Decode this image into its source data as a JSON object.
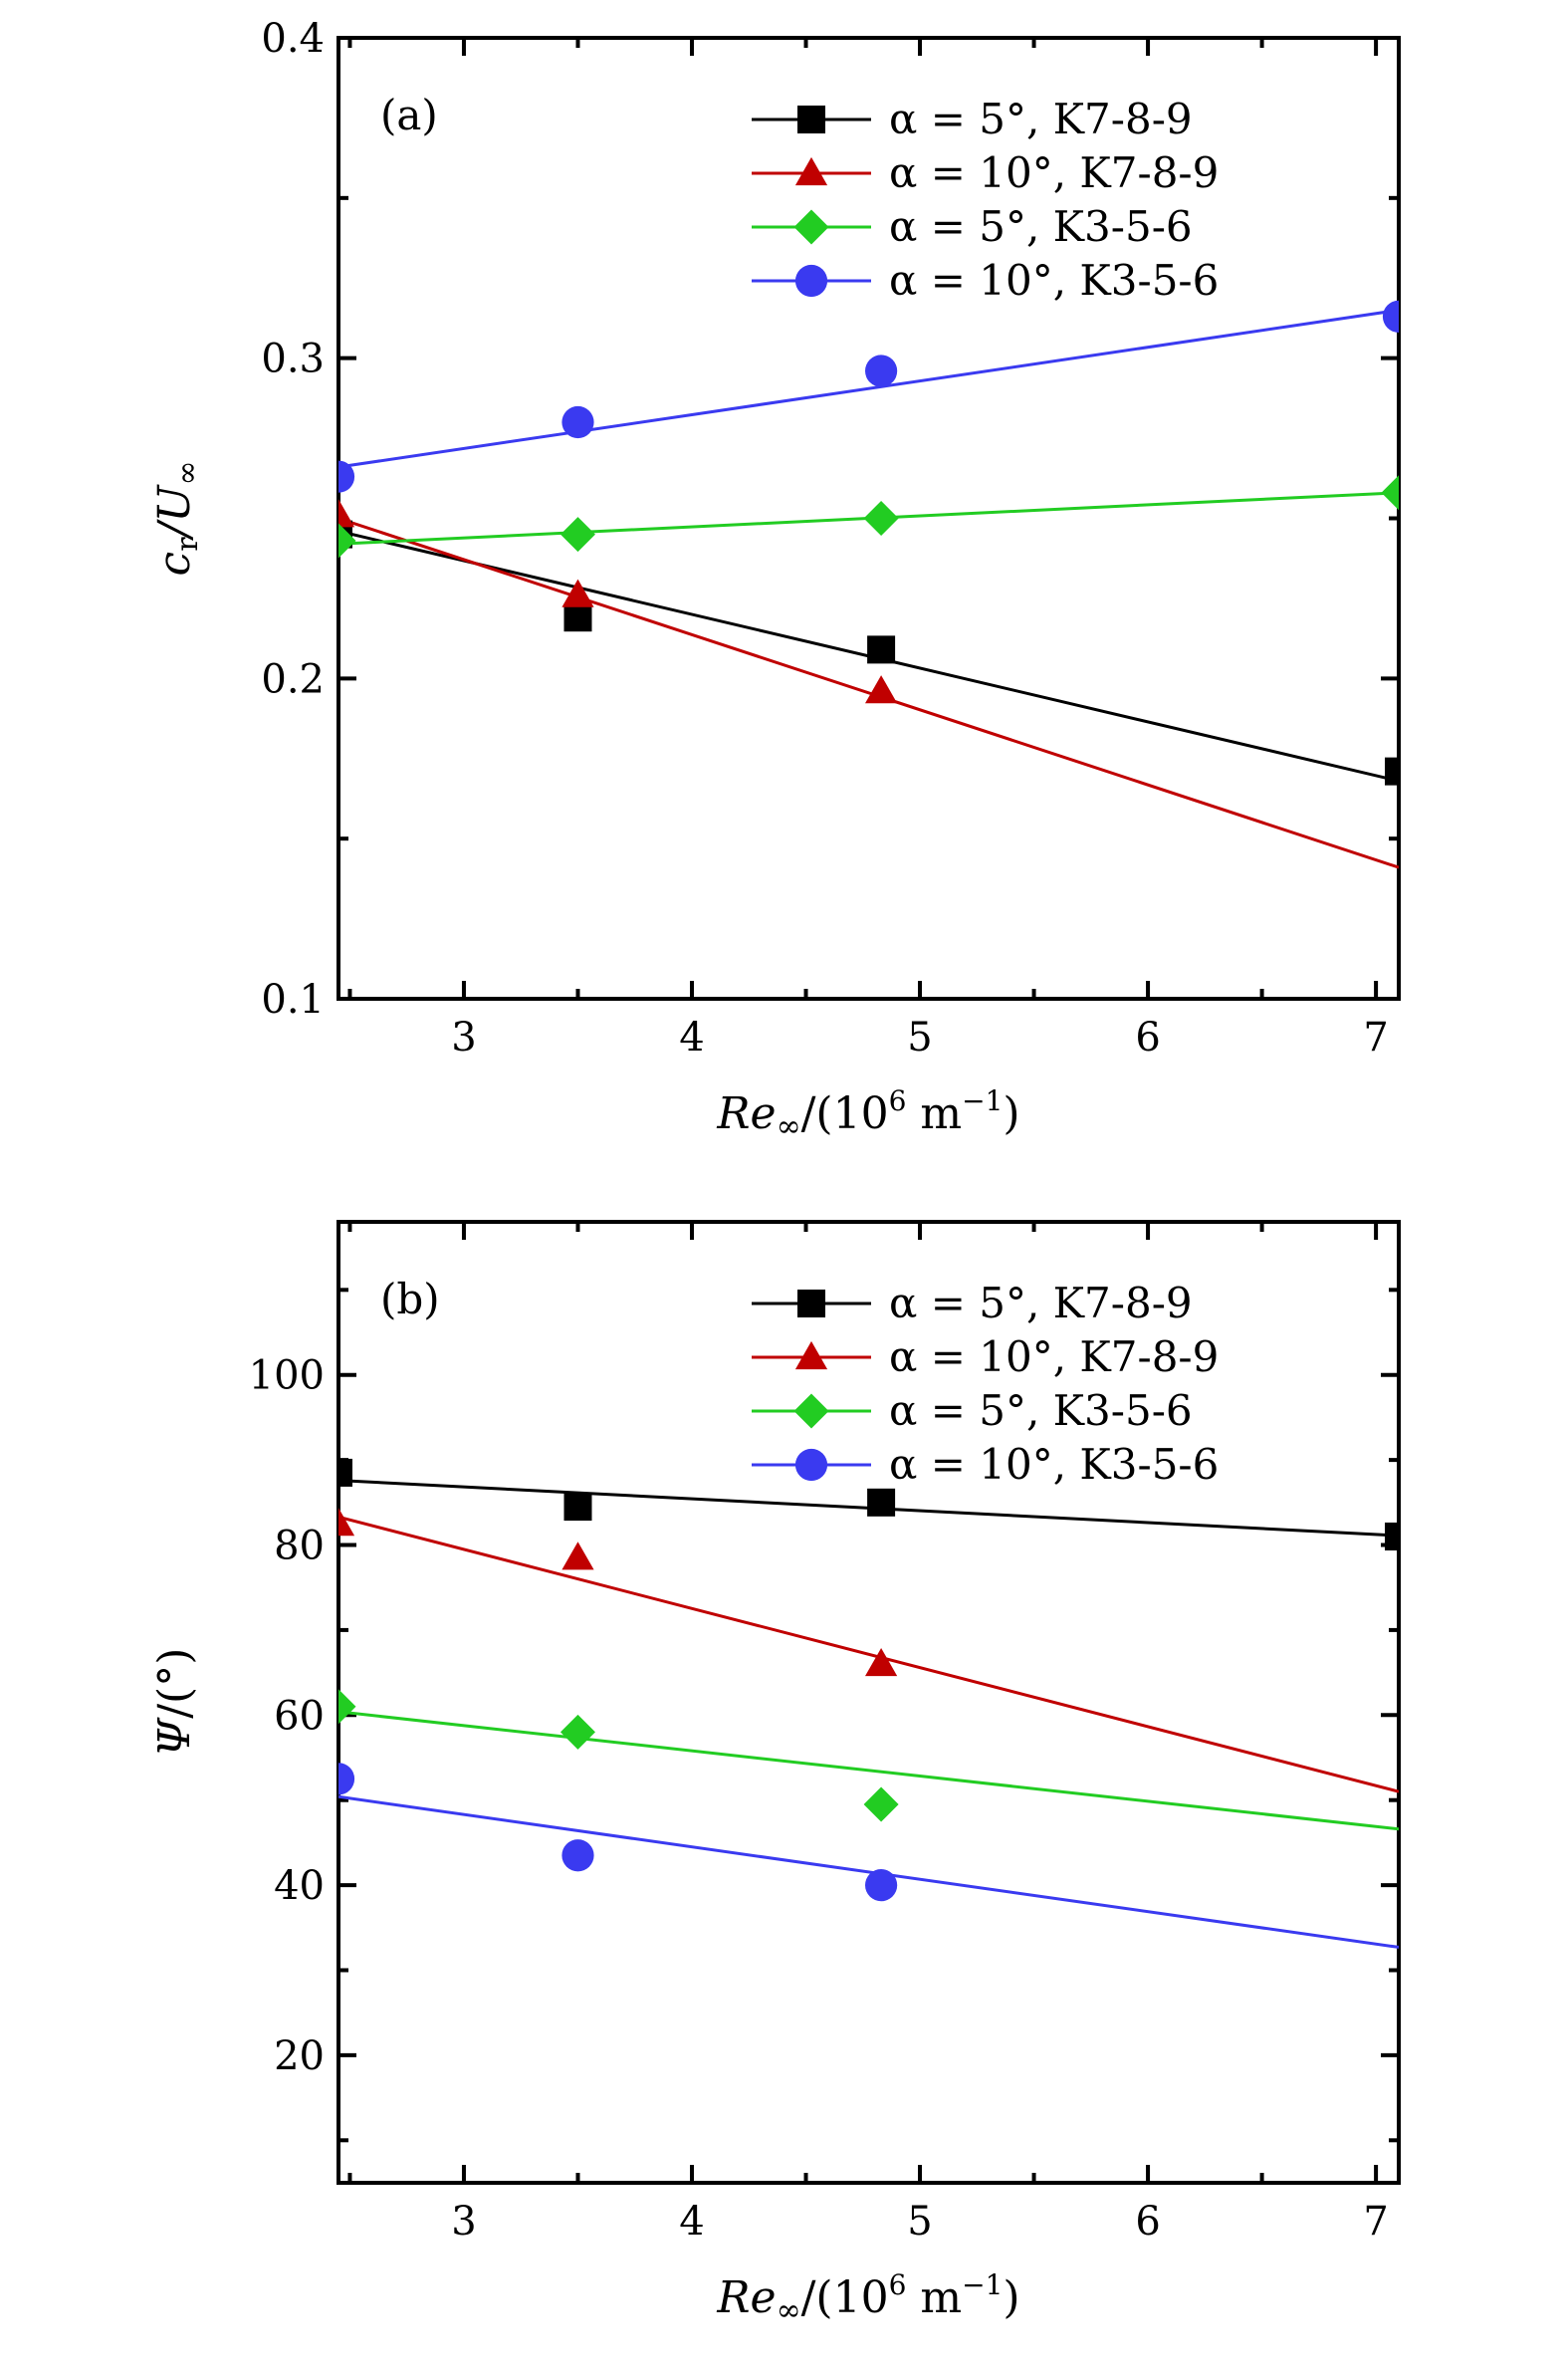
{
  "colors": {
    "black": "#000000",
    "red": "#c00000",
    "green": "#22cc22",
    "blue": "#3a3af0"
  },
  "chart_data": [
    {
      "type": "scatter",
      "panel_label": "(a)",
      "xlabel_parts": [
        "Re",
        "∞",
        "/(10",
        "6",
        " m",
        "−1",
        ")"
      ],
      "ylabel_parts": [
        "c",
        "r",
        "/U",
        "∞"
      ],
      "xlim": [
        2.45,
        7.1
      ],
      "ylim": [
        0.1,
        0.4
      ],
      "x_ticks": [
        3,
        4,
        5,
        6,
        7
      ],
      "x_tick_labels": [
        "3",
        "4",
        "5",
        "6",
        "7"
      ],
      "y_ticks": [
        0.1,
        0.2,
        0.3,
        0.4
      ],
      "y_tick_labels": [
        "0.1",
        "0.2",
        "0.3",
        "0.4"
      ],
      "legend_position": "top-right",
      "series": [
        {
          "name": "α = 5°, K7-8-9",
          "color": "#000000",
          "marker": "square",
          "x": [
            2.45,
            3.5,
            4.83,
            7.1
          ],
          "y": [
            0.245,
            0.219,
            0.209,
            0.171
          ],
          "fit": [
            [
              2.45,
              0.246
            ],
            [
              7.1,
              0.168
            ]
          ]
        },
        {
          "name": "α = 10°, K7-8-9",
          "color": "#c00000",
          "marker": "triangle",
          "x": [
            2.45,
            3.5,
            4.83
          ],
          "y": [
            0.251,
            0.226,
            0.196
          ],
          "fit": [
            [
              2.45,
              0.25
            ],
            [
              7.1,
              0.141
            ]
          ]
        },
        {
          "name": "α = 5°, K3-5-6",
          "color": "#22cc22",
          "marker": "diamond",
          "x": [
            2.45,
            3.5,
            4.83,
            7.1
          ],
          "y": [
            0.243,
            0.245,
            0.25,
            0.258
          ],
          "fit": [
            [
              2.45,
              0.242
            ],
            [
              7.1,
              0.258
            ]
          ]
        },
        {
          "name": "α = 10°, K3-5-6",
          "color": "#3a3af0",
          "marker": "circle",
          "x": [
            2.45,
            3.5,
            4.83,
            7.1
          ],
          "y": [
            0.263,
            0.28,
            0.296,
            0.313
          ],
          "fit": [
            [
              2.45,
              0.266
            ],
            [
              7.1,
              0.315
            ]
          ]
        }
      ]
    },
    {
      "type": "scatter",
      "panel_label": "(b)",
      "xlabel_parts": [
        "Re",
        "∞",
        "/(10",
        "6",
        " m",
        "−1",
        ")"
      ],
      "ylabel_parts": [
        "Ψ",
        "",
        "/(°)",
        ""
      ],
      "xlim": [
        2.45,
        7.1
      ],
      "ylim": [
        5,
        118
      ],
      "x_ticks": [
        3,
        4,
        5,
        6,
        7
      ],
      "x_tick_labels": [
        "3",
        "4",
        "5",
        "6",
        "7"
      ],
      "y_ticks": [
        20,
        40,
        60,
        80,
        100
      ],
      "y_tick_labels": [
        "20",
        "40",
        "60",
        "80",
        "100"
      ],
      "legend_position": "top-right",
      "series": [
        {
          "name": "α = 5°, K7-8-9",
          "color": "#000000",
          "marker": "square",
          "x": [
            2.45,
            3.5,
            4.83,
            7.1
          ],
          "y": [
            88.5,
            84.5,
            85,
            81
          ],
          "fit": [
            [
              2.45,
              87.6
            ],
            [
              7.1,
              81.1
            ]
          ]
        },
        {
          "name": "α = 10°, K7-8-9",
          "color": "#c00000",
          "marker": "triangle",
          "x": [
            2.45,
            3.5,
            4.83
          ],
          "y": [
            82.5,
            78.5,
            66
          ],
          "fit": [
            [
              2.45,
              83.3
            ],
            [
              7.1,
              51
            ]
          ]
        },
        {
          "name": "α = 5°, K3-5-6",
          "color": "#22cc22",
          "marker": "diamond",
          "x": [
            2.45,
            3.5,
            4.83
          ],
          "y": [
            61,
            58,
            49.5
          ],
          "fit": [
            [
              2.45,
              60.4
            ],
            [
              7.1,
              46.6
            ]
          ]
        },
        {
          "name": "α = 10°, K3-5-6",
          "color": "#3a3af0",
          "marker": "circle",
          "x": [
            2.45,
            3.5,
            4.83
          ],
          "y": [
            52.5,
            43.5,
            40
          ],
          "fit": [
            [
              2.45,
              50.4
            ],
            [
              7.1,
              32.7
            ]
          ]
        }
      ]
    }
  ]
}
